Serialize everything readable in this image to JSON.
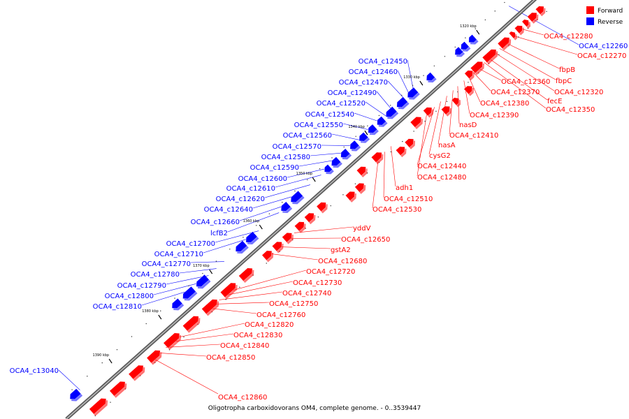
{
  "legend": {
    "forward": {
      "label": "Forward",
      "color": "#ff0000"
    },
    "reverse": {
      "label": "Reverse",
      "color": "#0000ff"
    }
  },
  "caption": "Oligotropha carboxidovorans OM4, complete genome. - 0..3539447",
  "ticks": [
    "1320 kbp",
    "1330 kbp",
    "1340 kbp",
    "1350 kbp",
    "1360 kbp",
    "1370 kbp",
    "1380 kbp",
    "1390 kbp"
  ],
  "forward_labels": [
    "OCA4_c12280",
    "OCA4_c12270",
    "fbpB",
    "fbpC",
    "OCA4_c12320",
    "fecE",
    "OCA4_c12350",
    "OCA4_c12360",
    "OCA4_c12370",
    "OCA4_c12380",
    "OCA4_c12390",
    "nasD",
    "OCA4_c12410",
    "nasA",
    "cysG2",
    "OCA4_c12440",
    "OCA4_c12480",
    "adh1",
    "OCA4_c12510",
    "OCA4_c12530",
    "yddV",
    "OCA4_c12650",
    "gstA2",
    "OCA4_c12680",
    "OCA4_c12720",
    "OCA4_c12730",
    "OCA4_c12740",
    "OCA4_c12750",
    "OCA4_c12760",
    "OCA4_c12820",
    "OCA4_c12830",
    "OCA4_c12840",
    "OCA4_c12850",
    "OCA4_c12860"
  ],
  "reverse_labels": [
    "OCA4_c12260",
    "OCA4_c12450",
    "OCA4_c12460",
    "OCA4_c12470",
    "OCA4_c12490",
    "OCA4_c12520",
    "OCA4_c12540",
    "OCA4_c12550",
    "OCA4_c12560",
    "OCA4_c12570",
    "OCA4_c12580",
    "OCA4_c12590",
    "OCA4_c12600",
    "OCA4_c12610",
    "OCA4_c12620",
    "OCA4_c12640",
    "OCA4_c12660",
    "lcfB2",
    "OCA4_c12700",
    "OCA4_c12710",
    "OCA4_c12770",
    "OCA4_c12780",
    "OCA4_c12790",
    "OCA4_c12800",
    "OCA4_c12810",
    "OCA4_c13040"
  ]
}
